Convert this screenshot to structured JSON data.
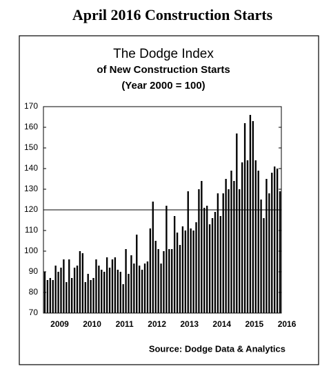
{
  "header": {
    "title": "April 2016 Construction Starts"
  },
  "chart_data": {
    "type": "bar",
    "title": "The Dodge Index",
    "subtitle": [
      "of New Construction Starts",
      "(Year 2000 = 100)"
    ],
    "source": "Source:  Dodge Data & Analytics",
    "categories": [
      null,
      null,
      null,
      null,
      null,
      "2009",
      null,
      null,
      null,
      null,
      null,
      null,
      null,
      null,
      null,
      null,
      null,
      "2010",
      null,
      null,
      null,
      null,
      null,
      null,
      null,
      null,
      null,
      null,
      null,
      "2011",
      null,
      null,
      null,
      null,
      null,
      null,
      null,
      null,
      null,
      null,
      null,
      "2012",
      null,
      null,
      null,
      null,
      null,
      null,
      null,
      null,
      null,
      null,
      null,
      "2013",
      null,
      null,
      null,
      null,
      null,
      null,
      null,
      null,
      null,
      null,
      null,
      "2014",
      null,
      null,
      null,
      null,
      null,
      null,
      null,
      null,
      null,
      null,
      null,
      "2015",
      null,
      null,
      null,
      null,
      null,
      null,
      null,
      null,
      null,
      "2016"
    ],
    "values": [
      90,
      86,
      87,
      86,
      93,
      90,
      92,
      96,
      85,
      96,
      87,
      92,
      93,
      100,
      99,
      85,
      89,
      86,
      87,
      96,
      93,
      91,
      90,
      97,
      92,
      96,
      97,
      91,
      90,
      84,
      101,
      89,
      98,
      94,
      108,
      93,
      91,
      94,
      95,
      111,
      124,
      105,
      101,
      94,
      100,
      122,
      101,
      101,
      117,
      109,
      103,
      112,
      110,
      129,
      111,
      110,
      114,
      130,
      134,
      121,
      122,
      113,
      116,
      119,
      128,
      117,
      128,
      135,
      130,
      139,
      134,
      157,
      130,
      143,
      162,
      144,
      166,
      163,
      144,
      139,
      125,
      116,
      135,
      128,
      138,
      141,
      140,
      129
    ],
    "color": "#000000",
    "ylim": [
      70,
      170
    ],
    "yticks": [
      70,
      80,
      90,
      100,
      110,
      120,
      130,
      140,
      150,
      160,
      170
    ],
    "reference_line": 120
  }
}
